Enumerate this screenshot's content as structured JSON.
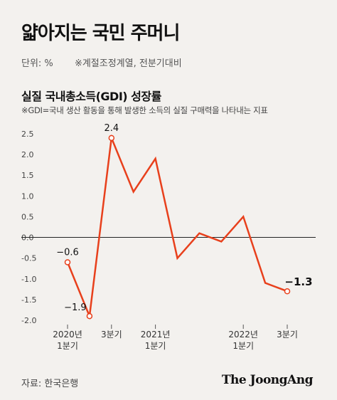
{
  "title": "얇아지는 국민 주머니",
  "units": {
    "unit_label": "단위: %",
    "note": "※계절조정계열, 전분기대비"
  },
  "chart_data": {
    "type": "line",
    "title": "실질 국내총소득(GDI) 성장률",
    "subtitle": "※GDI=국내 생산 활동을 통해 발생한 소득의 실질 구매력을 나타내는 지표",
    "x": [
      "2020-Q1",
      "2020-Q2",
      "2020-Q3",
      "2020-Q4",
      "2021-Q1",
      "2021-Q2",
      "2021-Q3",
      "2021-Q4",
      "2022-Q1",
      "2022-Q2",
      "2022-Q3"
    ],
    "values": [
      -0.6,
      -1.9,
      2.4,
      1.1,
      1.9,
      -0.5,
      0.1,
      -0.1,
      0.5,
      -1.1,
      -1.3
    ],
    "ylim": [
      -2.0,
      2.5
    ],
    "yticks": [
      2.5,
      2.0,
      1.5,
      1.0,
      0.5,
      0.0,
      -0.5,
      -1.0,
      -1.5,
      -2.0
    ],
    "ytick_labels": [
      "2.5",
      "2.0",
      "1.5",
      "1.0",
      "0.5",
      "0.0",
      "-0.5",
      "-1.0",
      "-1.5",
      "-2.0"
    ],
    "xticks": [
      {
        "index": 0,
        "lines": [
          "2020년",
          "1분기"
        ]
      },
      {
        "index": 2,
        "lines": [
          "3분기"
        ]
      },
      {
        "index": 4,
        "lines": [
          "2021년",
          "1분기"
        ]
      },
      {
        "index": 8,
        "lines": [
          "2022년",
          "1분기"
        ]
      },
      {
        "index": 10,
        "lines": [
          "3분기"
        ]
      }
    ],
    "data_labels": [
      {
        "index": 0,
        "text": "−0.6",
        "bold": false
      },
      {
        "index": 1,
        "text": "−1.9",
        "bold": false
      },
      {
        "index": 2,
        "text": "2.4",
        "bold": false
      },
      {
        "index": 10,
        "text": "−1.3",
        "bold": true
      }
    ],
    "line_color": "#e8401c",
    "grid": false
  },
  "source": "자료: 한국은행",
  "logo": "The JoongAng"
}
